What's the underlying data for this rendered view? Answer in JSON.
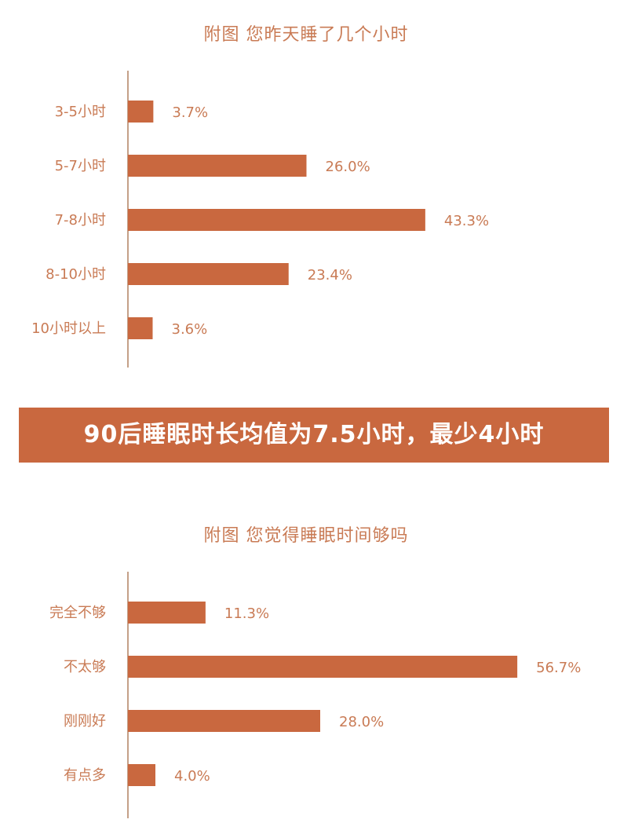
{
  "banner": {
    "text": "90后睡眠时长均值为7.5小时，最少4小时"
  },
  "colors": {
    "bar": "#c9683f",
    "text": "#c97b55",
    "axis": "#b08060"
  },
  "chart_data": [
    {
      "type": "bar",
      "orientation": "horizontal",
      "title": "附图  您昨天睡了几个小时",
      "categories": [
        "3-5小时",
        "5-7小时",
        "7-8小时",
        "8-10小时",
        "10小时以上"
      ],
      "values": [
        3.7,
        26.0,
        43.3,
        23.4,
        3.6
      ],
      "value_labels": [
        "3.7%",
        "26.0%",
        "43.3%",
        "23.4%",
        "3.6%"
      ],
      "unit": "%"
    },
    {
      "type": "bar",
      "orientation": "horizontal",
      "title": "附图  您觉得睡眠时间够吗",
      "categories": [
        "完全不够",
        "不太够",
        "刚刚好",
        "有点多"
      ],
      "values": [
        11.3,
        56.7,
        28.0,
        4.0
      ],
      "value_labels": [
        "11.3%",
        "56.7%",
        "28.0%",
        "4.0%"
      ],
      "unit": "%"
    }
  ]
}
